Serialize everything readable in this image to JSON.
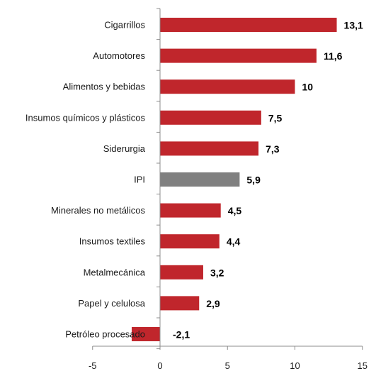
{
  "chart_data": {
    "type": "bar",
    "orientation": "horizontal",
    "title": "",
    "xlabel": "",
    "ylabel": "",
    "categories": [
      "Cigarrillos",
      "Automotores",
      "Alimentos y bebidas",
      "Insumos químicos y plásticos",
      "Siderurgia",
      "IPI",
      "Minerales no metálicos",
      "Insumos textiles",
      "Metalmecánica",
      "Papel y celulosa",
      "Petróleo procesado"
    ],
    "values": [
      13.1,
      11.6,
      10,
      7.5,
      7.3,
      5.9,
      4.5,
      4.4,
      3.2,
      2.9,
      -2.1
    ],
    "data_labels": [
      "13,1",
      "11,6",
      "10",
      "7,5",
      "7,3",
      "5,9",
      "4,5",
      "4,4",
      "3,2",
      "2,9",
      "-2,1"
    ],
    "highlight_category": "IPI",
    "xlim": [
      -5,
      15
    ],
    "xticks": [
      -5,
      0,
      5,
      10,
      15
    ],
    "xtick_labels": [
      "-5",
      "0",
      "5",
      "10",
      "15"
    ],
    "grid": false,
    "legend": "none",
    "colors": {
      "bar": "#c0262c",
      "bar_highlight": "#808080",
      "axis": "#8c8c8c"
    }
  }
}
